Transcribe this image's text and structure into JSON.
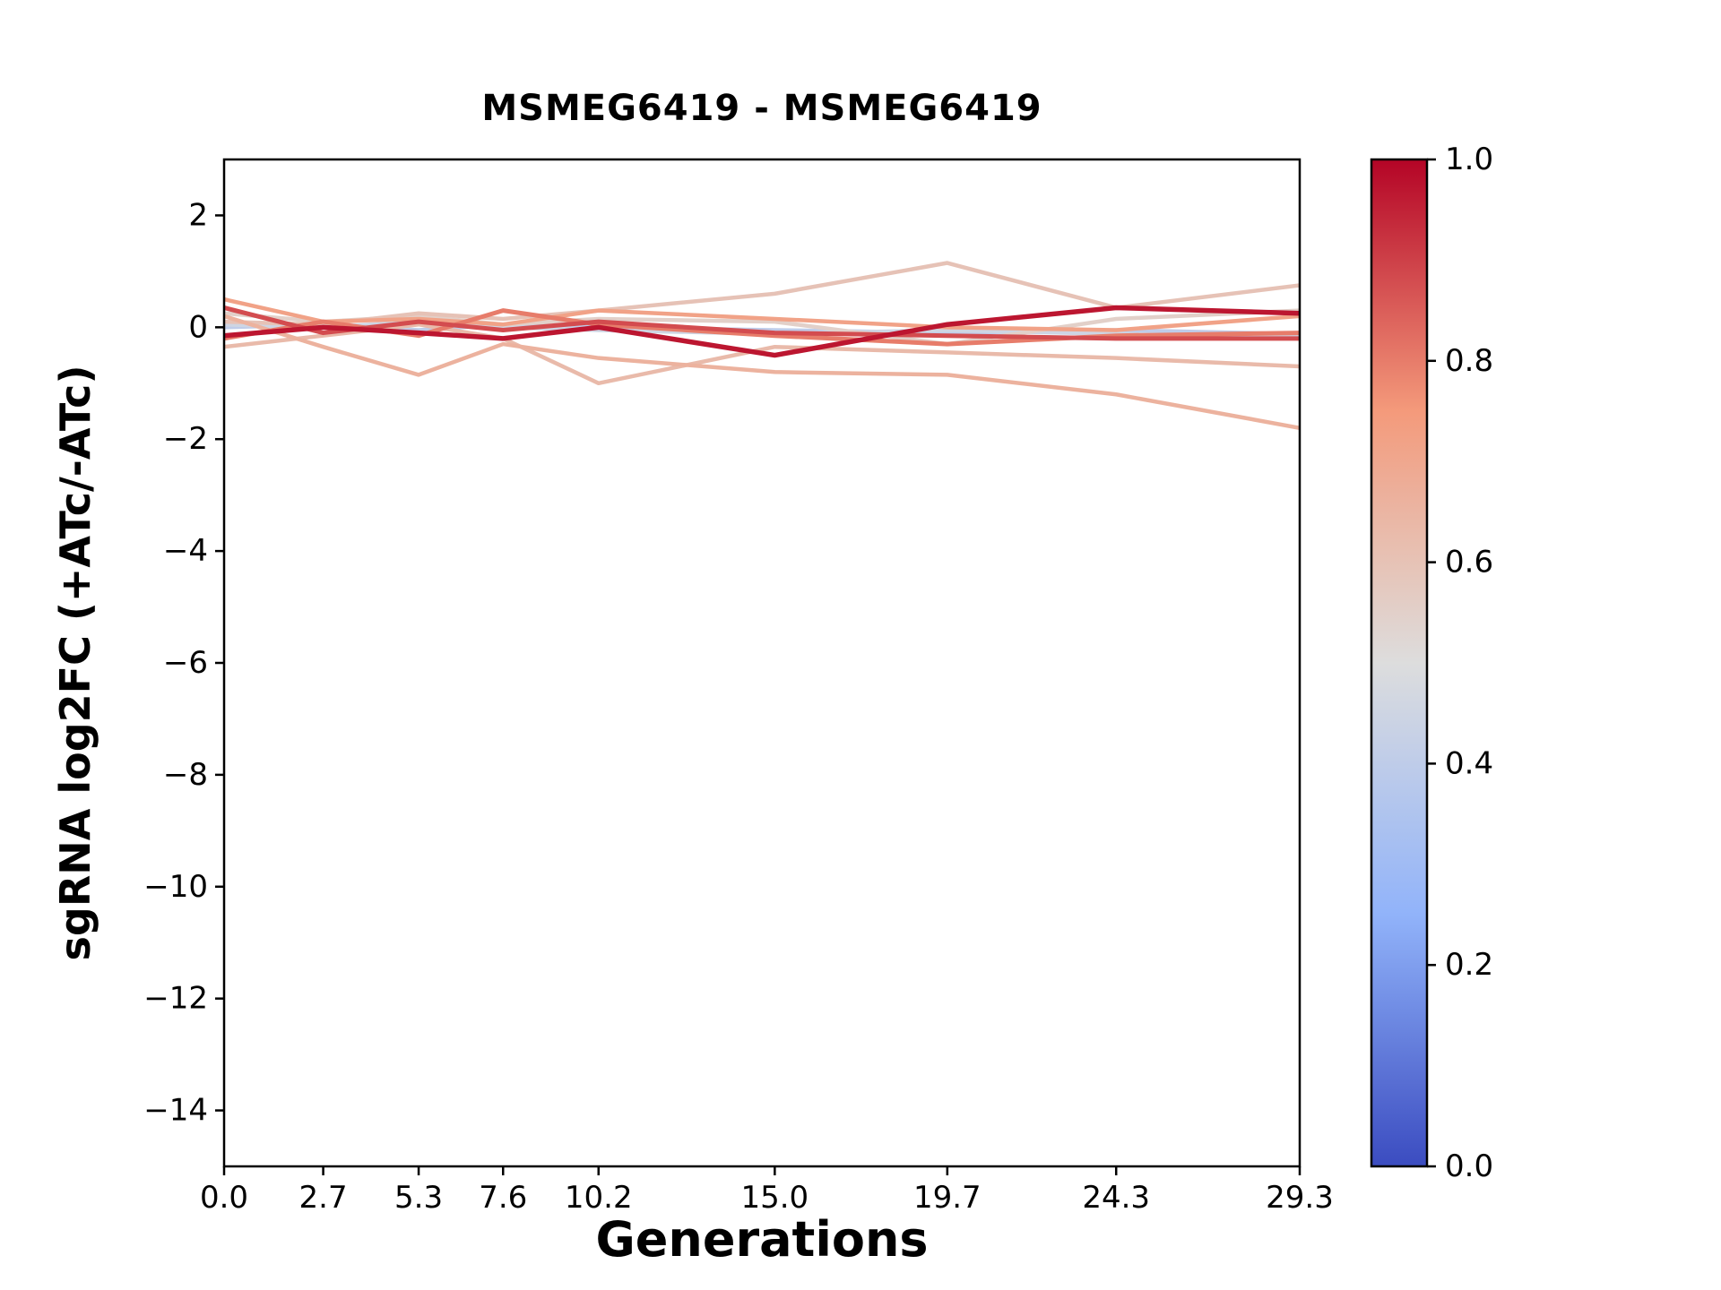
{
  "chart_data": {
    "type": "line",
    "title": "MSMEG6419 - MSMEG6419",
    "xlabel": "Generations",
    "ylabel": "sgRNA log2FC (+ATc/-ATc)",
    "xlim": [
      0,
      29.3
    ],
    "ylim": [
      -15,
      3
    ],
    "grid": false,
    "x": [
      0.0,
      2.7,
      5.3,
      7.6,
      10.2,
      15.0,
      19.7,
      24.3,
      29.3
    ],
    "xticks": [
      {
        "value": 0.0,
        "label": "0.0"
      },
      {
        "value": 2.7,
        "label": "2.7"
      },
      {
        "value": 5.3,
        "label": "5.3"
      },
      {
        "value": 7.6,
        "label": "7.6"
      },
      {
        "value": 10.2,
        "label": "10.2"
      },
      {
        "value": 15.0,
        "label": "15.0"
      },
      {
        "value": 19.7,
        "label": "19.7"
      },
      {
        "value": 24.3,
        "label": "24.3"
      },
      {
        "value": 29.3,
        "label": "29.3"
      }
    ],
    "yticks": [
      {
        "value": 2,
        "label": "2"
      },
      {
        "value": 0,
        "label": "0"
      },
      {
        "value": -2,
        "label": "−2"
      },
      {
        "value": -4,
        "label": "−4"
      },
      {
        "value": -6,
        "label": "−6"
      },
      {
        "value": -8,
        "label": "−8"
      },
      {
        "value": -10,
        "label": "−10"
      },
      {
        "value": -12,
        "label": "−12"
      },
      {
        "value": -14,
        "label": "−14"
      }
    ],
    "colormap": "coolwarm",
    "colorbar": {
      "min": 0.0,
      "max": 1.0,
      "position": "right",
      "ticks": [
        {
          "value": 1.0,
          "label": "1.0"
        },
        {
          "value": 0.8,
          "label": "0.8"
        },
        {
          "value": 0.6,
          "label": "0.6"
        },
        {
          "value": 0.4,
          "label": "0.4"
        },
        {
          "value": 0.2,
          "label": "0.2"
        },
        {
          "value": 0.0,
          "label": "0.0"
        }
      ]
    },
    "series": [
      {
        "colormap_value": 0.4,
        "linewidth": 4.5,
        "values": [
          0.0,
          0.05,
          -0.05,
          0.05,
          0.0,
          -0.05,
          -0.1,
          -0.05,
          -0.12
        ]
      },
      {
        "colormap_value": 0.45,
        "linewidth": 4.5,
        "values": [
          0.05,
          0.0,
          0.1,
          0.0,
          -0.05,
          -0.12,
          -0.05,
          -0.12,
          -0.18
        ]
      },
      {
        "colormap_value": 0.55,
        "linewidth": 4.5,
        "values": [
          0.25,
          0.1,
          0.2,
          0.05,
          0.15,
          0.1,
          -0.3,
          0.15,
          0.3
        ]
      },
      {
        "colormap_value": 0.6,
        "linewidth": 4.5,
        "values": [
          0.1,
          0.05,
          0.25,
          0.15,
          0.3,
          0.6,
          1.15,
          0.35,
          0.75
        ]
      },
      {
        "colormap_value": 0.63,
        "linewidth": 4.5,
        "values": [
          -0.35,
          -0.15,
          0.05,
          -0.2,
          -1.0,
          -0.35,
          -0.45,
          -0.55,
          -0.7
        ]
      },
      {
        "colormap_value": 0.66,
        "linewidth": 4.5,
        "values": [
          0.2,
          -0.35,
          -0.85,
          -0.3,
          -0.55,
          -0.8,
          -0.85,
          -1.2,
          -1.8
        ]
      },
      {
        "colormap_value": 0.72,
        "linewidth": 4.5,
        "values": [
          0.5,
          0.1,
          0.15,
          0.05,
          0.3,
          0.15,
          0.0,
          -0.05,
          0.2
        ]
      },
      {
        "colormap_value": 0.8,
        "linewidth": 5.0,
        "values": [
          -0.2,
          0.1,
          -0.15,
          0.3,
          0.05,
          -0.15,
          -0.3,
          -0.15,
          -0.1
        ]
      },
      {
        "colormap_value": 0.88,
        "linewidth": 5.0,
        "values": [
          0.35,
          -0.1,
          0.1,
          -0.05,
          0.1,
          -0.1,
          -0.15,
          -0.2,
          -0.2
        ]
      },
      {
        "colormap_value": 0.97,
        "linewidth": 5.5,
        "values": [
          -0.15,
          0.0,
          -0.1,
          -0.2,
          0.0,
          -0.5,
          0.05,
          0.35,
          0.25
        ]
      }
    ]
  }
}
